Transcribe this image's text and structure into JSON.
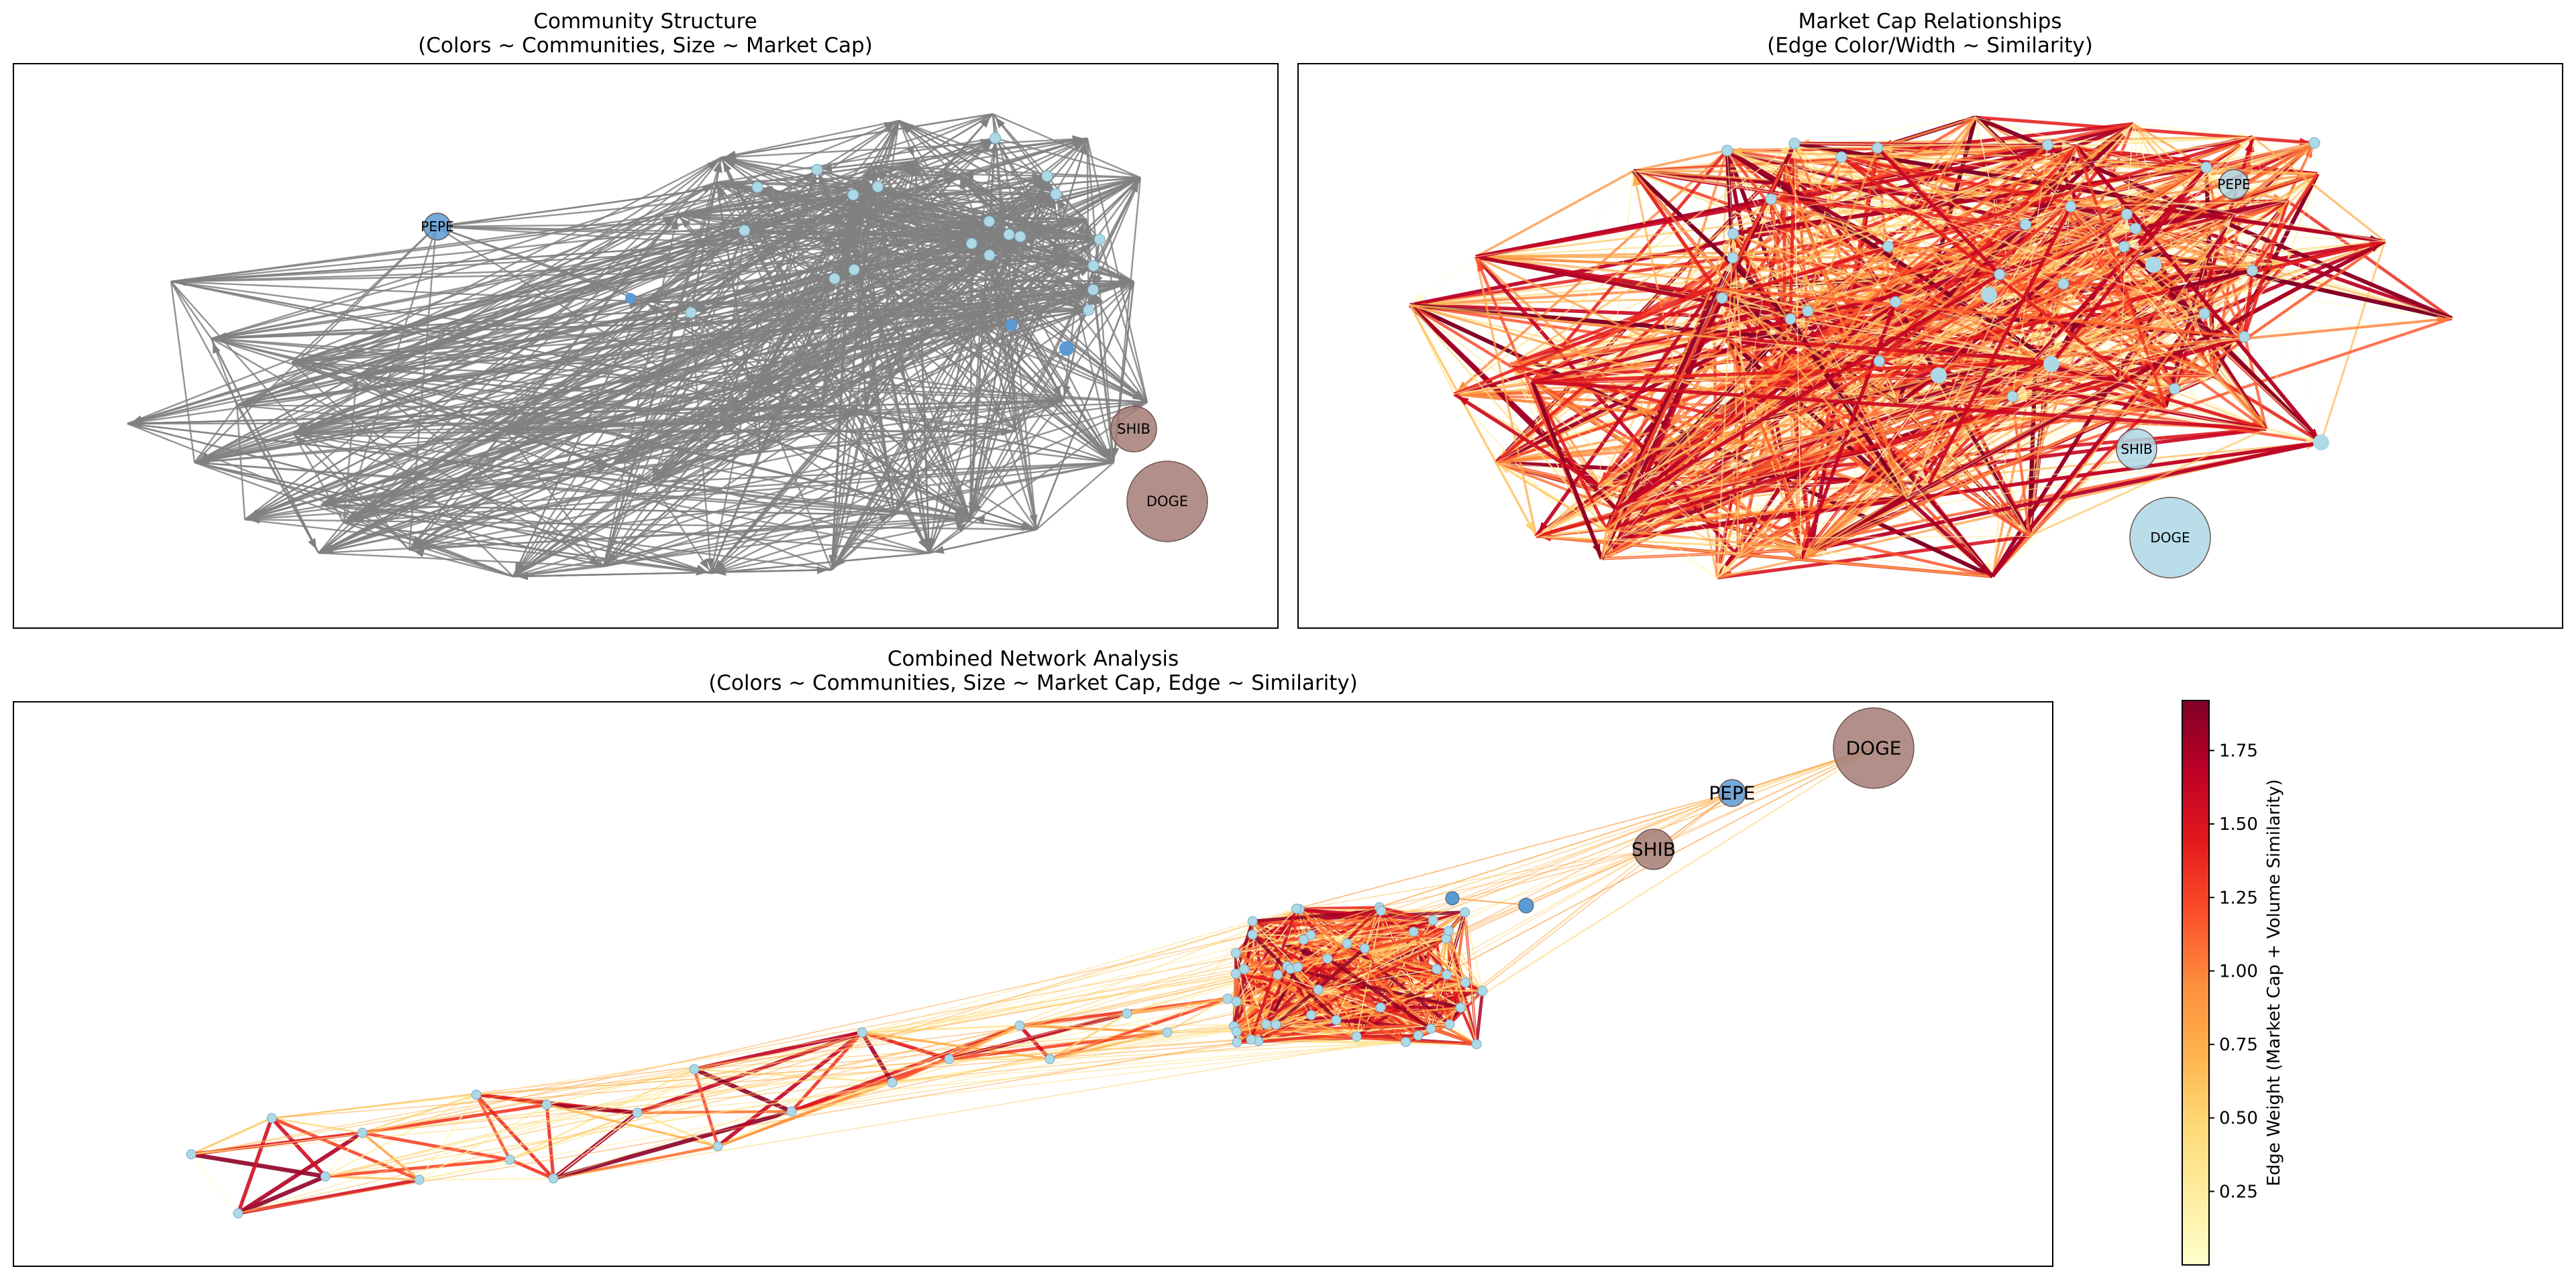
{
  "panels": [
    {
      "id": "community",
      "title_line1": "Community Structure",
      "title_line2": "(Colors ~ Communities, Size ~ Market Cap)"
    },
    {
      "id": "marketcap",
      "title_line1": "Market Cap Relationships",
      "title_line2": "(Edge Color/Width ~ Similarity)"
    },
    {
      "id": "combined",
      "title_line1": "Combined Network Analysis",
      "title_line2": "(Colors ~ Communities, Size ~ Market Cap, Edge ~ Similarity)"
    }
  ],
  "node_labels": {
    "pepe": "PEPE",
    "shib": "SHIB",
    "doge": "DOGE"
  },
  "colorbar": {
    "label": "Edge Weight (Market Cap + Volume Similarity)",
    "range": [
      0.0,
      1.92
    ],
    "ticks": [
      "0.25",
      "0.50",
      "0.75",
      "1.00",
      "1.25",
      "1.50",
      "1.75"
    ],
    "colormap": "YlOrRd"
  },
  "colors": {
    "community_light_blue": "#add8e6",
    "community_mid_blue": "#5b9bd5",
    "community_brown": "#a47d74",
    "gray_edge": "#808080"
  }
}
